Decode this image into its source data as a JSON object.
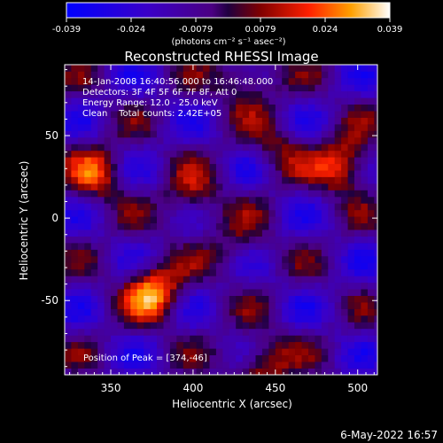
{
  "chart_data": {
    "type": "heatmap",
    "title": "Reconstructed RHESSI Image",
    "xlabel": "Heliocentric X (arcsec)",
    "ylabel": "Heliocentric Y (arcsec)",
    "xlim": [
      322,
      512
    ],
    "ylim": [
      -95,
      93
    ],
    "xticks": [
      350,
      400,
      450,
      500
    ],
    "yticks": [
      50,
      0,
      -50
    ],
    "colorbar": {
      "min": -0.039,
      "max": 0.039,
      "ticks": [
        "-0.039",
        "-0.024",
        "-0.0079",
        "0.0079",
        "0.024",
        "0.039"
      ],
      "unit_label": "(photons cm⁻² s⁻¹ asec⁻²)"
    },
    "info_lines": [
      "14-Jan-2008 16:40:56.000 to 16:46:48.000",
      "Detectors: 3F 4F 5F 6F 7F 8F, Att 0",
      "Energy Range: 12.0 - 25.0 keV",
      "Clean    Total counts: 2.42E+05"
    ],
    "peak_label": "Position of Peak = [374,-46]",
    "sources": [
      {
        "x": 374,
        "y": -46,
        "amp": 0.039
      },
      {
        "x": 490,
        "y": 30,
        "amp": 0.034
      },
      {
        "x": 340,
        "y": 25,
        "amp": 0.026
      },
      {
        "x": 398,
        "y": 10,
        "amp": 0.021
      },
      {
        "x": 430,
        "y": 82,
        "amp": 0.024
      },
      {
        "x": 440,
        "y": -90,
        "amp": 0.027
      },
      {
        "x": 425,
        "y": -20,
        "amp": 0.014
      },
      {
        "x": 450,
        "y": 40,
        "amp": 0.016
      }
    ]
  },
  "footer_date": "6-May-2022 16:57"
}
